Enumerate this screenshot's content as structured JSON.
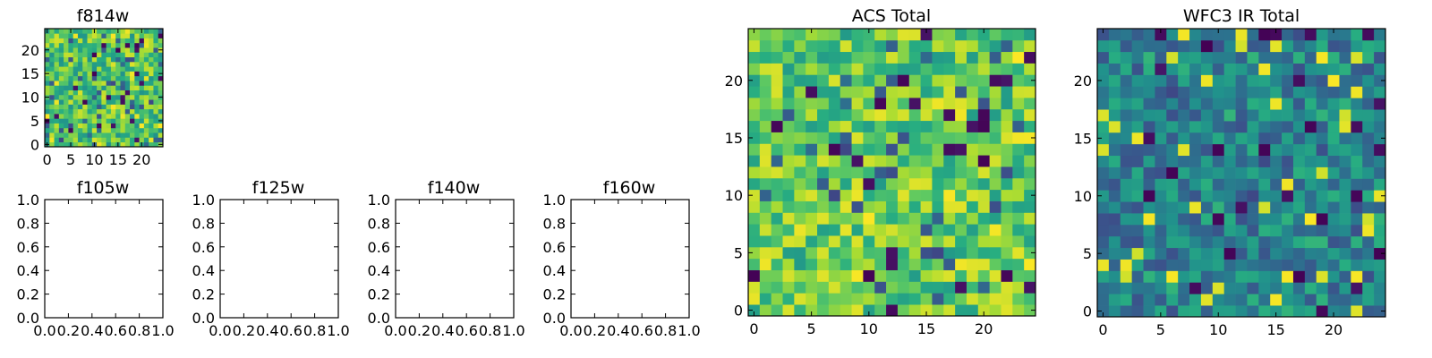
{
  "chart_data": [
    {
      "type": "heatmap",
      "title": "f814w",
      "colormap": "viridis",
      "grid_size": 25,
      "xticks": [
        "0",
        "5",
        "10",
        "15",
        "20"
      ],
      "yticks": [
        "0",
        "5",
        "10",
        "15",
        "20"
      ],
      "value_range": [
        0,
        1
      ],
      "seed": 814,
      "bias": 0.72
    },
    {
      "type": "heatmap",
      "title": "f105w",
      "empty": true,
      "xticks": [
        "0.0",
        "0.2",
        "0.4",
        "0.6",
        "0.8",
        "1.0"
      ],
      "yticks": [
        "0.0",
        "0.2",
        "0.4",
        "0.6",
        "0.8",
        "1.0"
      ],
      "xlim": [
        0,
        1
      ],
      "ylim": [
        0,
        1
      ]
    },
    {
      "type": "heatmap",
      "title": "f125w",
      "empty": true,
      "xticks": [
        "0.0",
        "0.2",
        "0.4",
        "0.6",
        "0.8",
        "1.0"
      ],
      "yticks": [
        "0.0",
        "0.2",
        "0.4",
        "0.6",
        "0.8",
        "1.0"
      ],
      "xlim": [
        0,
        1
      ],
      "ylim": [
        0,
        1
      ]
    },
    {
      "type": "heatmap",
      "title": "f140w",
      "empty": true,
      "xticks": [
        "0.0",
        "0.2",
        "0.4",
        "0.6",
        "0.8",
        "1.0"
      ],
      "yticks": [
        "0.0",
        "0.2",
        "0.4",
        "0.6",
        "0.8",
        "1.0"
      ],
      "xlim": [
        0,
        1
      ],
      "ylim": [
        0,
        1
      ]
    },
    {
      "type": "heatmap",
      "title": "f160w",
      "empty": true,
      "xticks": [
        "0.0",
        "0.2",
        "0.4",
        "0.6",
        "0.8",
        "1.0"
      ],
      "yticks": [
        "0.0",
        "0.2",
        "0.4",
        "0.6",
        "0.8",
        "1.0"
      ],
      "xlim": [
        0,
        1
      ],
      "ylim": [
        0,
        1
      ]
    },
    {
      "type": "heatmap",
      "title": "ACS Total",
      "colormap": "viridis",
      "grid_size": 25,
      "xticks": [
        "0",
        "5",
        "10",
        "15",
        "20"
      ],
      "yticks": [
        "0",
        "5",
        "10",
        "15",
        "20"
      ],
      "value_range": [
        0,
        1
      ],
      "seed": 4242,
      "bias": 0.75
    },
    {
      "type": "heatmap",
      "title": "WFC3 IR Total",
      "colormap": "viridis",
      "grid_size": 25,
      "xticks": [
        "0",
        "5",
        "10",
        "15",
        "20"
      ],
      "yticks": [
        "0",
        "5",
        "10",
        "15",
        "20"
      ],
      "value_range": [
        0,
        1
      ],
      "seed": 3131,
      "bias": 0.45
    }
  ]
}
